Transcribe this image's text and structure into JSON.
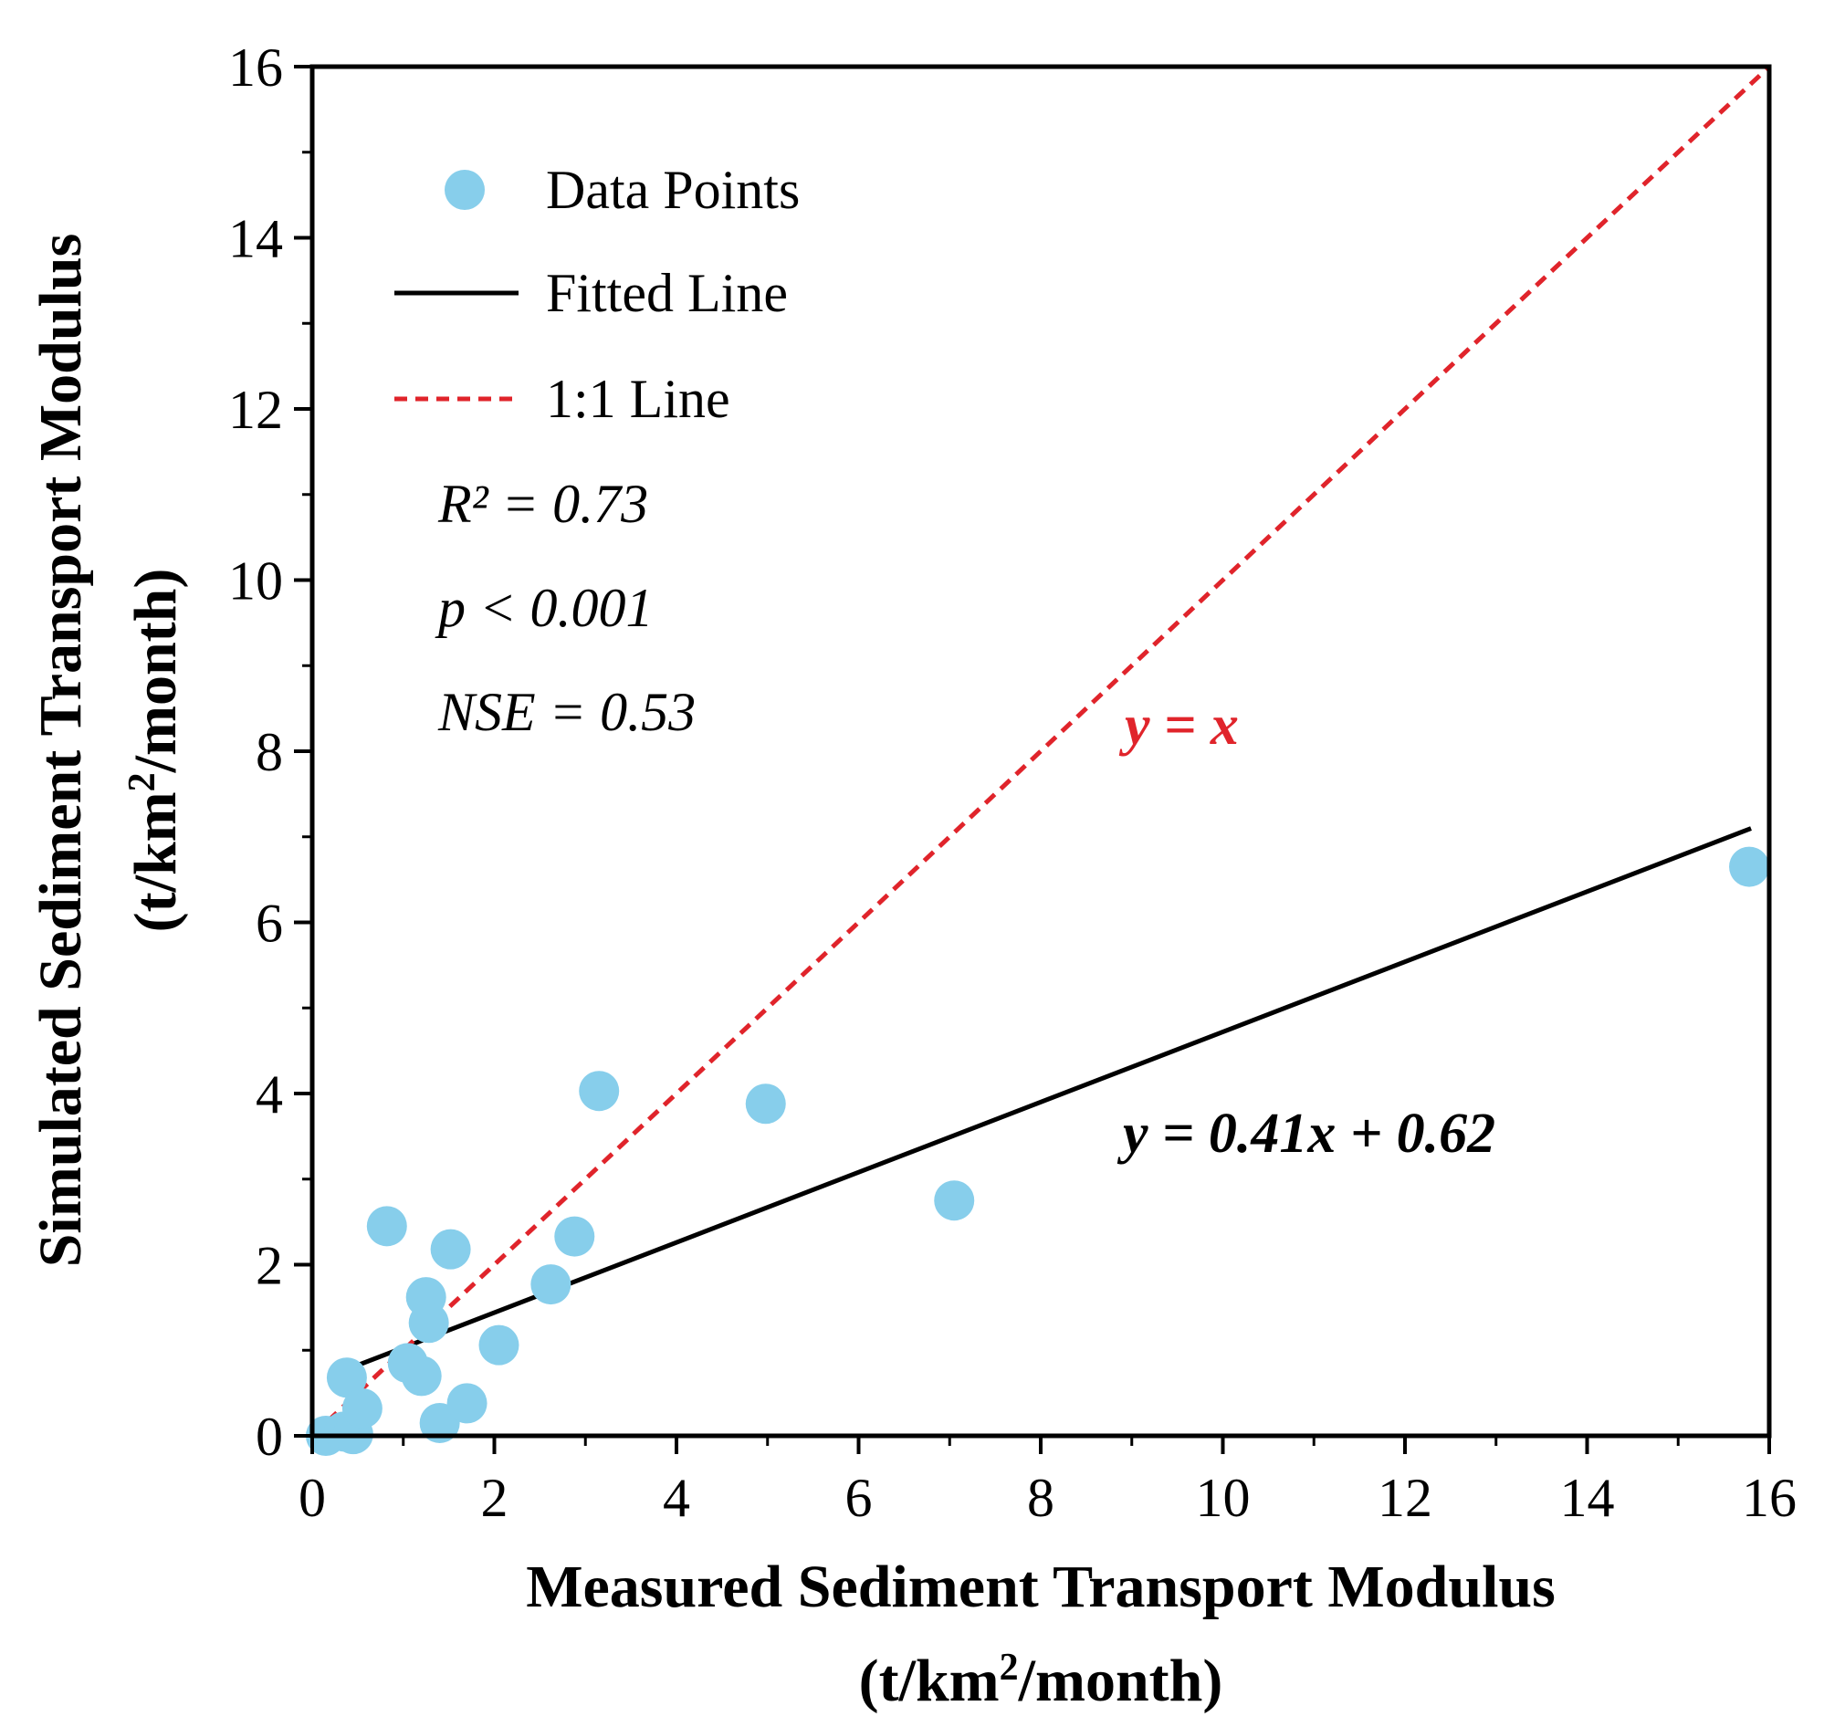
{
  "chart_data": {
    "type": "scatter",
    "xlabel": "Measured Sediment Transport Modulus",
    "xlabel_unit": {
      "pre": "(t/km",
      "sup": "2",
      "post": "/month)"
    },
    "ylabel": "Simulated Sediment Transport Modulus",
    "ylabel_unit": {
      "pre": "(t/km",
      "sup": "2",
      "post": "/month)"
    },
    "xlim": [
      0,
      16
    ],
    "ylim": [
      0,
      16
    ],
    "xticks": [
      0,
      2,
      4,
      6,
      8,
      10,
      12,
      14,
      16
    ],
    "yticks": [
      0,
      2,
      4,
      6,
      8,
      10,
      12,
      14,
      16
    ],
    "tick_labels": [
      "0",
      "2",
      "4",
      "6",
      "8",
      "10",
      "12",
      "14",
      "16"
    ],
    "legend_position": "top-left",
    "series": [
      {
        "name": "Data Points",
        "kind": "scatter",
        "color": "#87CEEB",
        "points": [
          [
            0.15,
            0.0
          ],
          [
            0.35,
            0.05
          ],
          [
            0.45,
            0.02
          ],
          [
            0.38,
            0.68
          ],
          [
            0.55,
            0.32
          ],
          [
            0.82,
            2.45
          ],
          [
            1.05,
            0.85
          ],
          [
            1.2,
            0.7
          ],
          [
            1.25,
            1.62
          ],
          [
            1.28,
            1.32
          ],
          [
            1.4,
            0.15
          ],
          [
            1.52,
            2.18
          ],
          [
            1.7,
            0.38
          ],
          [
            2.05,
            1.06
          ],
          [
            2.62,
            1.77
          ],
          [
            2.88,
            2.33
          ],
          [
            3.15,
            4.03
          ],
          [
            4.98,
            3.88
          ],
          [
            7.05,
            2.75
          ],
          [
            15.78,
            6.65
          ]
        ]
      },
      {
        "name": "Fitted Line",
        "kind": "line",
        "color": "#000000",
        "slope": 0.41,
        "intercept": 0.62,
        "x_range": [
          0.18,
          15.8
        ]
      },
      {
        "name": "1:1 Line",
        "kind": "line",
        "style": "dashed",
        "color": "#E0242B",
        "slope": 1,
        "intercept": 0,
        "x_range": [
          0,
          16
        ]
      }
    ],
    "stats": {
      "r2": "R² = 0.73",
      "p": "p < 0.001",
      "nse": "NSE = 0.53"
    },
    "annotations": {
      "ref_equation": "y = x",
      "fit_equation": "y = 0.41x + 0.62"
    }
  }
}
